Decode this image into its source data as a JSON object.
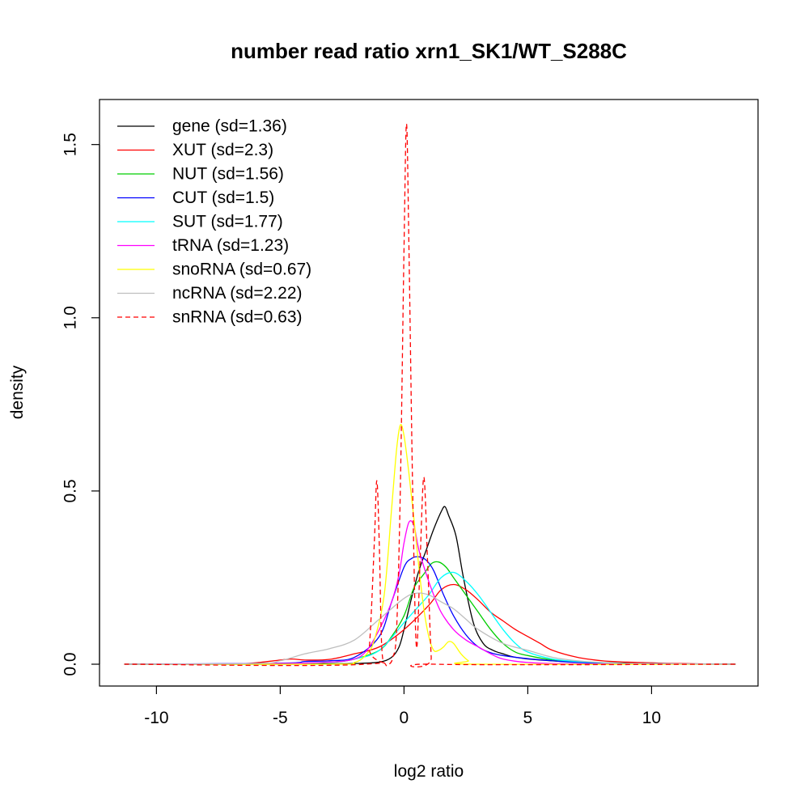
{
  "chart_data": {
    "type": "line",
    "title": "number read ratio xrn1_SK1/WT_S288C",
    "xlabel": "log2 ratio",
    "ylabel": "density",
    "xlim": [
      -12.3,
      14.3
    ],
    "ylim": [
      -0.063,
      1.63
    ],
    "xticks": [
      -10,
      -5,
      0,
      5,
      10
    ],
    "xtick_labels": [
      "-10",
      "-5",
      "0",
      "5",
      "10"
    ],
    "yticks": [
      0.0,
      0.5,
      1.0,
      1.5
    ],
    "ytick_labels": [
      "0.0",
      "0.5",
      "1.0",
      "1.5"
    ],
    "grid": false,
    "legend_position": "top-left",
    "series": [
      {
        "name": "gene (sd=1.36)",
        "color": "#000000",
        "dash": "solid",
        "x": [
          -11.3,
          -5.0,
          -3.0,
          -2.0,
          -1.0,
          -0.5,
          -0.2,
          0.0,
          0.3,
          0.6,
          0.9,
          1.2,
          1.5,
          1.65,
          1.8,
          2.1,
          2.4,
          2.8,
          3.2,
          3.6,
          4.0,
          4.5,
          5.5,
          7.0,
          10.0,
          13.4
        ],
        "y": [
          0.0,
          0.0,
          0.001,
          0.002,
          0.006,
          0.02,
          0.05,
          0.1,
          0.19,
          0.27,
          0.33,
          0.39,
          0.44,
          0.455,
          0.43,
          0.37,
          0.25,
          0.12,
          0.06,
          0.04,
          0.03,
          0.02,
          0.012,
          0.006,
          0.002,
          0.0
        ]
      },
      {
        "name": "XUT (sd=2.3)",
        "color": "#ff0000",
        "dash": "solid",
        "x": [
          -11.3,
          -7.0,
          -6.0,
          -5.0,
          -4.5,
          -4.0,
          -3.0,
          -2.0,
          -1.0,
          0.0,
          1.0,
          1.5,
          2.0,
          2.5,
          3.0,
          3.5,
          4.0,
          4.5,
          5.0,
          5.5,
          6.0,
          7.0,
          8.0,
          9.0,
          10.0,
          11.0,
          13.4
        ],
        "y": [
          0.0,
          0.001,
          0.004,
          0.012,
          0.015,
          0.012,
          0.014,
          0.03,
          0.05,
          0.1,
          0.17,
          0.215,
          0.23,
          0.215,
          0.185,
          0.15,
          0.125,
          0.1,
          0.08,
          0.06,
          0.04,
          0.02,
          0.01,
          0.006,
          0.004,
          0.002,
          0.0
        ]
      },
      {
        "name": "NUT (sd=1.56)",
        "color": "#00cd00",
        "dash": "solid",
        "x": [
          -11.3,
          -5.0,
          -3.0,
          -2.0,
          -1.0,
          -0.5,
          0.0,
          0.4,
          0.8,
          1.1,
          1.4,
          1.7,
          2.0,
          2.5,
          3.0,
          3.5,
          4.0,
          4.5,
          5.0,
          6.0,
          7.0,
          9.0,
          13.4
        ],
        "y": [
          0.0,
          0.001,
          0.005,
          0.015,
          0.04,
          0.08,
          0.14,
          0.22,
          0.26,
          0.29,
          0.295,
          0.28,
          0.25,
          0.2,
          0.15,
          0.1,
          0.06,
          0.035,
          0.025,
          0.012,
          0.006,
          0.002,
          0.0
        ]
      },
      {
        "name": "CUT (sd=1.5)",
        "color": "#0000ff",
        "dash": "solid",
        "x": [
          -11.3,
          -5.0,
          -4.0,
          -3.0,
          -2.0,
          -1.0,
          -0.5,
          0.0,
          0.3,
          0.6,
          0.9,
          1.2,
          1.6,
          2.0,
          2.5,
          3.0,
          3.5,
          4.0,
          5.0,
          6.0,
          7.0,
          9.0,
          13.4
        ],
        "y": [
          0.0,
          0.003,
          0.008,
          0.01,
          0.02,
          0.08,
          0.18,
          0.28,
          0.305,
          0.31,
          0.3,
          0.27,
          0.2,
          0.14,
          0.085,
          0.05,
          0.033,
          0.025,
          0.016,
          0.01,
          0.005,
          0.002,
          0.0
        ]
      },
      {
        "name": "SUT (sd=1.77)",
        "color": "#00ffff",
        "dash": "solid",
        "x": [
          -11.3,
          -5.0,
          -3.0,
          -2.0,
          -1.0,
          0.0,
          0.5,
          1.0,
          1.5,
          2.0,
          2.5,
          3.0,
          3.5,
          4.0,
          4.5,
          5.0,
          6.0,
          7.0,
          9.0,
          13.4
        ],
        "y": [
          0.0,
          0.002,
          0.006,
          0.015,
          0.04,
          0.12,
          0.16,
          0.2,
          0.25,
          0.265,
          0.24,
          0.2,
          0.15,
          0.1,
          0.06,
          0.035,
          0.015,
          0.008,
          0.002,
          0.0
        ]
      },
      {
        "name": "tRNA (sd=1.23)",
        "color": "#ff00ff",
        "dash": "solid",
        "x": [
          -11.3,
          -5.0,
          -3.0,
          -2.0,
          -1.5,
          -1.0,
          -0.5,
          -0.2,
          0.0,
          0.2,
          0.4,
          0.6,
          0.9,
          1.2,
          1.5,
          2.0,
          2.5,
          3.0,
          3.5,
          4.0,
          5.0,
          7.0,
          13.4
        ],
        "y": [
          0.0,
          0.002,
          0.006,
          0.015,
          0.04,
          0.1,
          0.18,
          0.26,
          0.35,
          0.41,
          0.4,
          0.33,
          0.26,
          0.2,
          0.15,
          0.1,
          0.07,
          0.05,
          0.03,
          0.015,
          0.005,
          0.001,
          0.0
        ]
      },
      {
        "name": "snoRNA (sd=0.67)",
        "color": "#ffff00",
        "dash": "solid",
        "x": [
          -11.3,
          -3.0,
          -2.0,
          -1.5,
          -1.2,
          -0.8,
          -0.5,
          -0.3,
          -0.15,
          0.0,
          0.2,
          0.4,
          0.6,
          0.8,
          1.0,
          1.2,
          1.4,
          1.6,
          1.8,
          2.0,
          2.3,
          2.6,
          2.9,
          13.4
        ],
        "y": [
          0.0,
          0.0,
          0.005,
          0.03,
          0.07,
          0.2,
          0.45,
          0.62,
          0.69,
          0.66,
          0.55,
          0.42,
          0.28,
          0.16,
          0.08,
          0.04,
          0.04,
          0.05,
          0.065,
          0.06,
          0.03,
          0.01,
          0.0,
          0.0
        ]
      },
      {
        "name": "ncRNA (sd=2.22)",
        "color": "#bebebe",
        "dash": "solid",
        "x": [
          -11.3,
          -6.0,
          -5.0,
          -4.0,
          -3.0,
          -2.0,
          -1.0,
          0.0,
          0.5,
          1.0,
          1.5,
          2.0,
          2.5,
          3.0,
          4.0,
          5.0,
          6.0,
          7.0,
          8.0,
          9.0,
          13.4
        ],
        "y": [
          0.0,
          0.002,
          0.01,
          0.03,
          0.045,
          0.07,
          0.13,
          0.19,
          0.205,
          0.2,
          0.18,
          0.16,
          0.13,
          0.1,
          0.06,
          0.04,
          0.02,
          0.01,
          0.005,
          0.002,
          0.0
        ]
      },
      {
        "name": "snRNA (sd=0.63)",
        "color": "#ff0000",
        "dash": "dashed",
        "x": [
          -11.3,
          -1.6,
          -1.4,
          -1.2,
          -1.1,
          -1.0,
          -0.9,
          -0.75,
          -0.6,
          -0.45,
          -0.3,
          -0.15,
          0.0,
          0.1,
          0.2,
          0.35,
          0.5,
          0.65,
          0.8,
          0.95,
          1.1,
          1.2,
          13.4
        ],
        "y": [
          0.0,
          0.0,
          0.05,
          0.35,
          0.53,
          0.35,
          0.05,
          0.0,
          0.0,
          0.02,
          0.1,
          0.5,
          1.2,
          1.56,
          1.2,
          0.5,
          0.05,
          0.3,
          0.54,
          0.3,
          0.02,
          0.0,
          0.0
        ]
      }
    ]
  }
}
